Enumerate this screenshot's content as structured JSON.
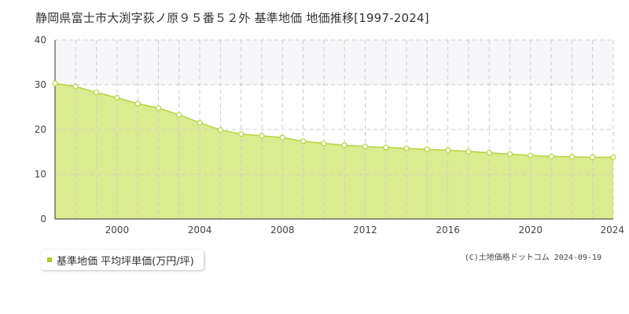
{
  "title": "静岡県富士市大渕字荻ノ原９５番５２外 基準地価 地価推移[1997-2024]",
  "legend": {
    "label": "基準地価 平均坪単価(万円/坪)",
    "swatch_color": "#aacc22"
  },
  "copyright": "(C)土地価格ドットコム 2024-09-19",
  "colors": {
    "area_fill": "#dbeb8f",
    "line": "#b5d43d",
    "marker_fill": "#ffffff",
    "marker_stroke": "#b5d43d",
    "band_fill": "#f7f7fa",
    "grid": "#cccccc"
  },
  "chart_data": {
    "type": "area",
    "x": [
      1997,
      1998,
      1999,
      2000,
      2001,
      2002,
      2003,
      2004,
      2005,
      2006,
      2007,
      2008,
      2009,
      2010,
      2011,
      2012,
      2013,
      2014,
      2015,
      2016,
      2017,
      2018,
      2019,
      2020,
      2021,
      2022,
      2023,
      2024
    ],
    "series": [
      {
        "values": [
          30.3,
          29.6,
          28.3,
          27.1,
          25.8,
          24.8,
          23.3,
          21.5,
          19.9,
          19.0,
          18.6,
          18.2,
          17.4,
          16.9,
          16.5,
          16.2,
          16.0,
          15.8,
          15.6,
          15.4,
          15.1,
          14.8,
          14.5,
          14.2,
          14.0,
          13.9,
          13.8,
          13.8
        ]
      }
    ],
    "x_ticks": [
      "2000",
      "2004",
      "2008",
      "2012",
      "2016",
      "2020",
      "2024"
    ],
    "y_ticks": [
      "0",
      "10",
      "20",
      "30",
      "40"
    ],
    "xlim": [
      1997,
      2024
    ],
    "ylim": [
      0,
      40
    ],
    "grid": true,
    "band": [
      30,
      40
    ],
    "legend_position": "bottom-left"
  }
}
